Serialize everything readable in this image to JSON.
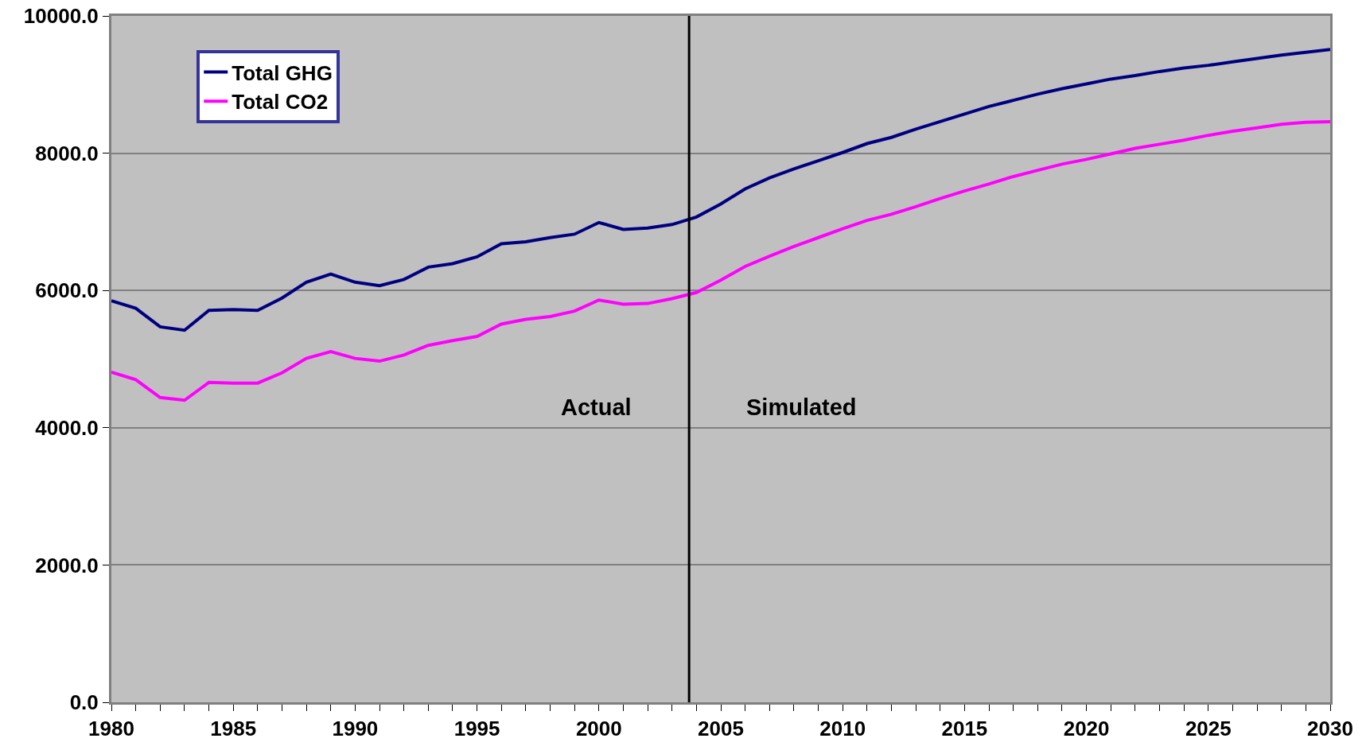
{
  "chart_data": {
    "type": "line",
    "x": [
      1980,
      1981,
      1982,
      1983,
      1984,
      1985,
      1986,
      1987,
      1988,
      1989,
      1990,
      1991,
      1992,
      1993,
      1994,
      1995,
      1996,
      1997,
      1998,
      1999,
      2000,
      2001,
      2002,
      2003,
      2004,
      2005,
      2006,
      2007,
      2008,
      2009,
      2010,
      2011,
      2012,
      2013,
      2014,
      2015,
      2016,
      2017,
      2018,
      2019,
      2020,
      2021,
      2022,
      2023,
      2024,
      2025,
      2026,
      2027,
      2028,
      2029,
      2030
    ],
    "series": [
      {
        "name": "Total GHG",
        "color": "#000080",
        "values": [
          5850,
          5740,
          5470,
          5420,
          5710,
          5720,
          5710,
          5890,
          6120,
          6240,
          6120,
          6070,
          6160,
          6340,
          6390,
          6490,
          6680,
          6710,
          6770,
          6820,
          6990,
          6890,
          6910,
          6960,
          7070,
          7260,
          7480,
          7640,
          7770,
          7890,
          8010,
          8140,
          8230,
          8350,
          8460,
          8570,
          8680,
          8770,
          8860,
          8940,
          9010,
          9080,
          9130,
          9190,
          9240,
          9280,
          9330,
          9380,
          9430,
          9470,
          9510
        ]
      },
      {
        "name": "Total CO2",
        "color": "#ff00ff",
        "values": [
          4810,
          4700,
          4440,
          4400,
          4660,
          4650,
          4650,
          4800,
          5010,
          5110,
          5010,
          4970,
          5060,
          5200,
          5270,
          5330,
          5510,
          5580,
          5620,
          5700,
          5860,
          5800,
          5810,
          5880,
          5970,
          6150,
          6350,
          6500,
          6640,
          6770,
          6900,
          7020,
          7110,
          7220,
          7340,
          7450,
          7550,
          7660,
          7750,
          7840,
          7910,
          7990,
          8070,
          8130,
          8190,
          8260,
          8320,
          8370,
          8420,
          8450,
          8460
        ]
      }
    ],
    "xlim": [
      1980,
      2030
    ],
    "xticks": [
      1980,
      {
        "value": 1981,
        "label": null
      },
      {
        "value": 1982,
        "label": null
      },
      {
        "value": 1983,
        "label": null
      },
      {
        "value": 1984,
        "label": null
      },
      1985,
      {
        "value": 1986,
        "label": null
      },
      {
        "value": 1987,
        "label": null
      },
      {
        "value": 1988,
        "label": null
      },
      {
        "value": 1989,
        "label": null
      },
      1990,
      {
        "value": 1991,
        "label": null
      },
      {
        "value": 1992,
        "label": null
      },
      {
        "value": 1993,
        "label": null
      },
      {
        "value": 1994,
        "label": null
      },
      1995,
      {
        "value": 1996,
        "label": null
      },
      {
        "value": 1997,
        "label": null
      },
      {
        "value": 1998,
        "label": null
      },
      {
        "value": 1999,
        "label": null
      },
      2000,
      {
        "value": 2001,
        "label": null
      },
      {
        "value": 2002,
        "label": null
      },
      {
        "value": 2003,
        "label": null
      },
      {
        "value": 2004,
        "label": null
      },
      2005,
      {
        "value": 2006,
        "label": null
      },
      {
        "value": 2007,
        "label": null
      },
      {
        "value": 2008,
        "label": null
      },
      {
        "value": 2009,
        "label": null
      },
      2010,
      {
        "value": 2011,
        "label": null
      },
      {
        "value": 2012,
        "label": null
      },
      {
        "value": 2013,
        "label": null
      },
      {
        "value": 2014,
        "label": null
      },
      2015,
      {
        "value": 2016,
        "label": null
      },
      {
        "value": 2017,
        "label": null
      },
      {
        "value": 2018,
        "label": null
      },
      {
        "value": 2019,
        "label": null
      },
      2020,
      {
        "value": 2021,
        "label": null
      },
      {
        "value": 2022,
        "label": null
      },
      {
        "value": 2023,
        "label": null
      },
      {
        "value": 2024,
        "label": null
      },
      2025,
      {
        "value": 2026,
        "label": null
      },
      {
        "value": 2027,
        "label": null
      },
      {
        "value": 2028,
        "label": null
      },
      {
        "value": 2029,
        "label": null
      },
      2030
    ],
    "ylim": [
      0,
      10000
    ],
    "yticks": [
      {
        "value": 0,
        "label": "0.0"
      },
      {
        "value": 2000,
        "label": "2000.0"
      },
      {
        "value": 4000,
        "label": "4000.0"
      },
      {
        "value": 6000,
        "label": "6000.0"
      },
      {
        "value": 8000,
        "label": "8000.0"
      },
      {
        "value": 10000,
        "label": "10000.0"
      }
    ],
    "ref_lines": [
      {
        "axis": "x",
        "value": 2003.7,
        "color": "#000000"
      }
    ],
    "annotations": [
      "Actual",
      "Simulated"
    ],
    "grid": "y",
    "legend": "top left",
    "marker": "none",
    "line_style": "solid"
  }
}
